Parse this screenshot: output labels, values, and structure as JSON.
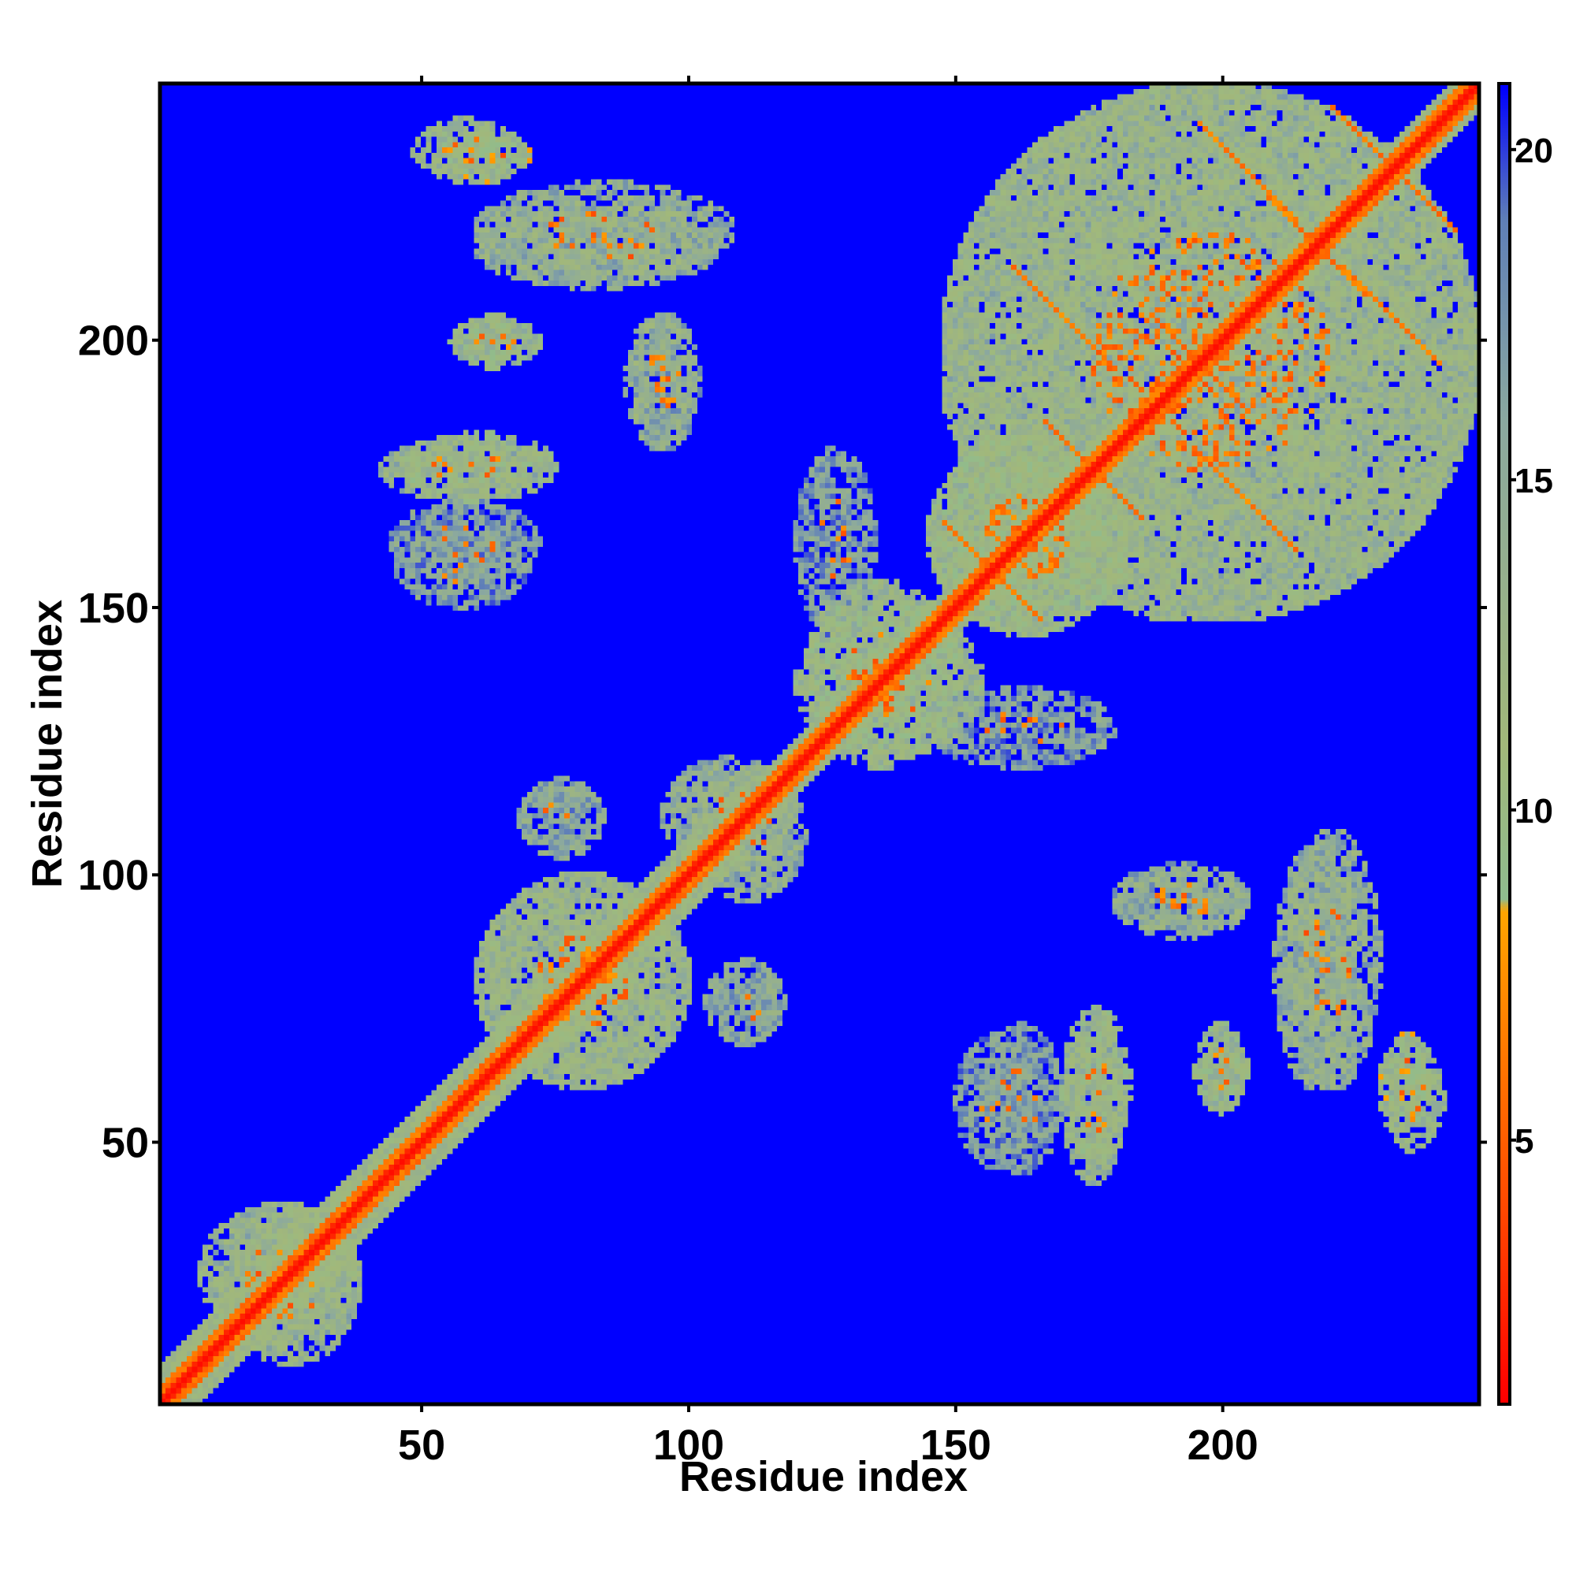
{
  "chart_data": {
    "type": "heatmap",
    "title": "",
    "xlabel": "Residue index",
    "ylabel": "Residue index",
    "xlim": [
      1,
      248
    ],
    "ylim": [
      1,
      248
    ],
    "x_ticks": [
      50,
      100,
      150,
      200
    ],
    "x_tick_labels": [
      "50",
      "100",
      "150",
      "200"
    ],
    "y_ticks": [
      50,
      100,
      150,
      200
    ],
    "y_tick_labels": [
      "50",
      "100",
      "150",
      "200"
    ],
    "matrix_size": 248,
    "value_range": [
      1,
      21
    ],
    "background_value": 21,
    "colorbar": {
      "ticks": [
        5,
        10,
        15,
        20
      ],
      "tick_labels": [
        "5",
        "10",
        "15",
        "20"
      ],
      "stops": [
        {
          "value": 1,
          "color": "#ff0000"
        },
        {
          "value": 4,
          "color": "#ff4a00"
        },
        {
          "value": 8.5,
          "color": "#ffa500"
        },
        {
          "value": 8.6,
          "color": "#8fbc8f"
        },
        {
          "value": 11,
          "color": "#a2b87a"
        },
        {
          "value": 16,
          "color": "#8aa8a0"
        },
        {
          "value": 19,
          "color": "#5f7fb8"
        },
        {
          "value": 21,
          "color": "#0000ff"
        }
      ]
    },
    "diagonal_band": {
      "core_value": 1.5,
      "near_value": 5,
      "shell_value": 10,
      "half_width": 5
    },
    "contact_clusters": [
      {
        "x": [
          12,
          38
        ],
        "y": [
          8,
          38
        ],
        "value": 10
      },
      {
        "x": [
          60,
          100
        ],
        "y": [
          60,
          100
        ],
        "value": 10
      },
      {
        "x": [
          68,
          84
        ],
        "y": [
          103,
          118
        ],
        "value": 12
      },
      {
        "x": [
          100,
          122
        ],
        "y": [
          95,
          120
        ],
        "value": 11
      },
      {
        "x": [
          110,
          118
        ],
        "y": [
          70,
          82
        ],
        "value": 13
      },
      {
        "x": [
          122,
          150
        ],
        "y": [
          120,
          155
        ],
        "value": 9
      },
      {
        "x": [
          145,
          180
        ],
        "y": [
          120,
          135
        ],
        "value": 13
      },
      {
        "x": [
          145,
          182
        ],
        "y": [
          145,
          182
        ],
        "value": 9
      },
      {
        "x": [
          148,
          248
        ],
        "y": [
          148,
          248
        ],
        "value": 10
      },
      {
        "x": [
          55,
          70
        ],
        "y": [
          230,
          240
        ],
        "value": 8
      },
      {
        "x": [
          60,
          108
        ],
        "y": [
          212,
          230
        ],
        "value": 11
      },
      {
        "x": [
          55,
          72
        ],
        "y": [
          196,
          204
        ],
        "value": 9
      },
      {
        "x": [
          88,
          100
        ],
        "y": [
          180,
          205
        ],
        "value": 11
      },
      {
        "x": [
          46,
          75
        ],
        "y": [
          170,
          183
        ],
        "value": 9
      },
      {
        "x": [
          44,
          72
        ],
        "y": [
          155,
          170
        ],
        "value": 13
      },
      {
        "x": [
          150,
          165
        ],
        "y": [
          45,
          70
        ],
        "value": 13
      },
      {
        "x": [
          170,
          182
        ],
        "y": [
          42,
          72
        ],
        "value": 10
      },
      {
        "x": [
          195,
          205
        ],
        "y": [
          55,
          72
        ],
        "value": 9
      },
      {
        "x": [
          210,
          225
        ],
        "y": [
          60,
          105
        ],
        "value": 11
      },
      {
        "x": [
          230,
          242
        ],
        "y": [
          48,
          68
        ],
        "value": 9
      },
      {
        "x": [
          180,
          205
        ],
        "y": [
          90,
          102
        ],
        "value": 12
      }
    ]
  }
}
